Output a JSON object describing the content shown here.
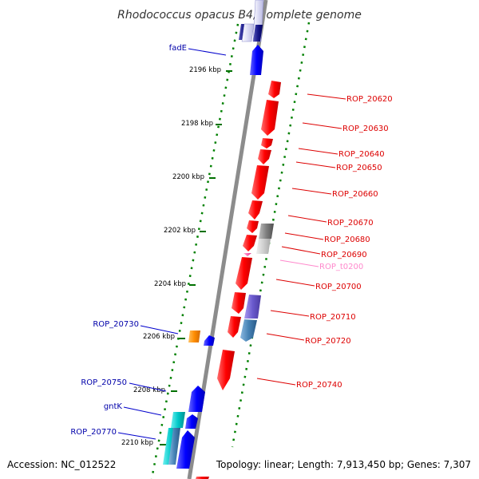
{
  "title": "Rhodococcus opacus B4, complete genome",
  "accession": "Accession: NC_012522",
  "summary": "Topology: linear; Length: 7,913,450 bp; Genes: 7,307",
  "colors": {
    "red_gene": "#ff0000",
    "blue_gene": "#0000ff",
    "navy_gene": "#00008b",
    "orange_gene": "#ff8c00",
    "cyan_gene": "#00c8c8",
    "purple_gene": "#6a5acd",
    "steel_gene": "#4682b4",
    "gray_gene": "#808080",
    "pink_gene": "#ff69b4",
    "backbone": "#8c8c8c",
    "tick_mark": "#007000",
    "left_label": "#0000aa",
    "right_label": "#dd0000",
    "trna_label": "#ff88cc"
  },
  "axis": {
    "ticks": [
      "2196 kbp",
      "2198 kbp",
      "2200 kbp",
      "2202 kbp",
      "2204 kbp",
      "2206 kbp",
      "2208 kbp",
      "2210 kbp"
    ]
  },
  "gene_labels": {
    "left": [
      "fadE",
      "ROP_20730",
      "ROP_20750",
      "gntK",
      "ROP_20770"
    ],
    "right": [
      "ROP_20620",
      "ROP_20630",
      "ROP_20640",
      "ROP_20650",
      "ROP_20660",
      "ROP_20670",
      "ROP_20680",
      "ROP_20690",
      "ROP_t0200",
      "ROP_20700",
      "ROP_20710",
      "ROP_20720",
      "ROP_20740"
    ]
  }
}
